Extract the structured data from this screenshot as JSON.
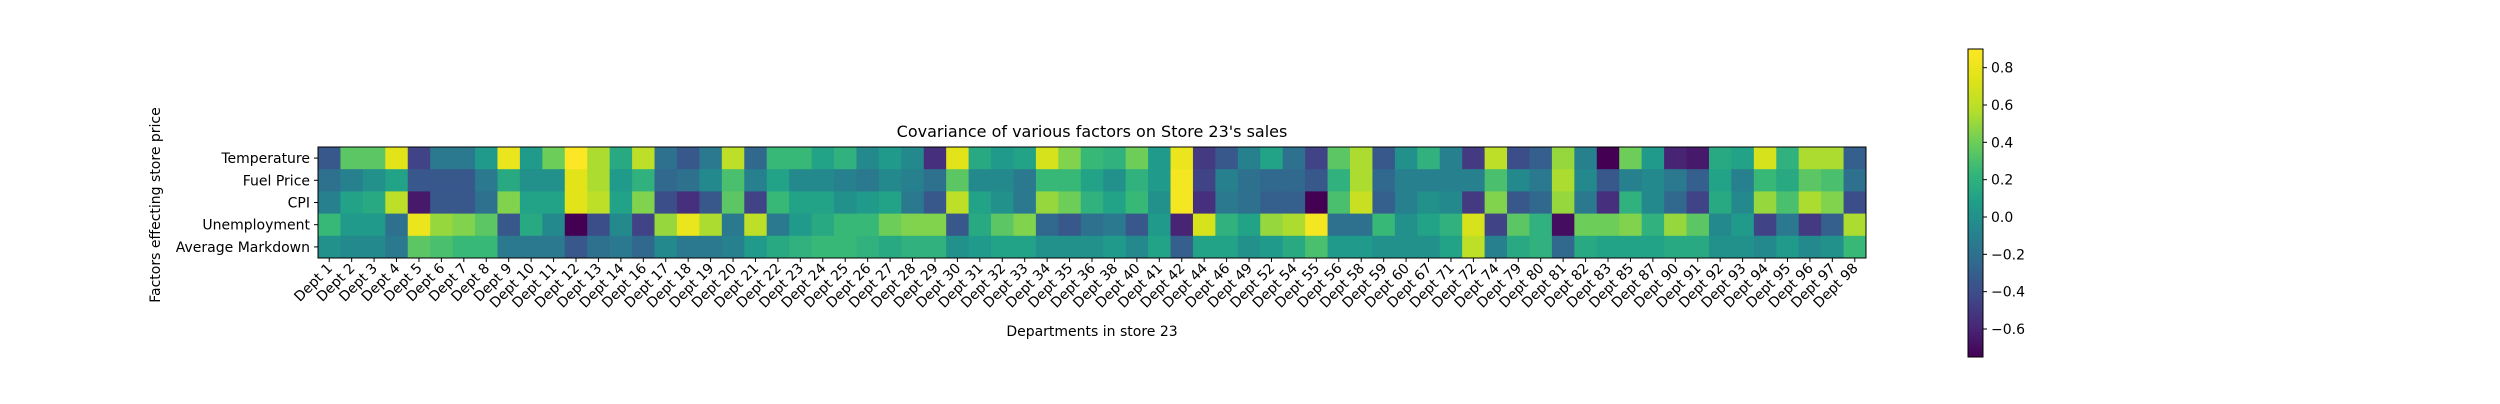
{
  "chart_data": {
    "type": "heatmap",
    "title": "Covariance of various factors on Store 23's sales",
    "xlabel": "Departments in store 23",
    "ylabel": "Factors effecting store price",
    "colormap": "viridis",
    "color_range": [
      -0.75,
      0.9
    ],
    "colorbar_ticks": [
      0.8,
      0.6,
      0.4,
      0.2,
      0.0,
      -0.2,
      -0.4,
      -0.6
    ],
    "colorbar_tick_labels": [
      "0.8",
      "0.6",
      "0.4",
      "0.2",
      "0.0",
      "−0.2",
      "−0.4",
      "−0.6"
    ],
    "rows": [
      "Temperature",
      "Fuel Price",
      "CPI",
      "Unemployment",
      "Average Markdown"
    ],
    "columns": [
      "Dept 1",
      "Dept 2",
      "Dept 3",
      "Dept 4",
      "Dept 5",
      "Dept 6",
      "Dept 7",
      "Dept 8",
      "Dept 9",
      "Dept 10",
      "Dept 11",
      "Dept 12",
      "Dept 13",
      "Dept 14",
      "Dept 16",
      "Dept 17",
      "Dept 18",
      "Dept 19",
      "Dept 20",
      "Dept 21",
      "Dept 22",
      "Dept 23",
      "Dept 24",
      "Dept 25",
      "Dept 26",
      "Dept 27",
      "Dept 28",
      "Dept 29",
      "Dept 30",
      "Dept 31",
      "Dept 32",
      "Dept 33",
      "Dept 34",
      "Dept 35",
      "Dept 36",
      "Dept 38",
      "Dept 40",
      "Dept 41",
      "Dept 42",
      "Dept 44",
      "Dept 46",
      "Dept 49",
      "Dept 52",
      "Dept 54",
      "Dept 55",
      "Dept 56",
      "Dept 58",
      "Dept 59",
      "Dept 60",
      "Dept 67",
      "Dept 71",
      "Dept 72",
      "Dept 74",
      "Dept 79",
      "Dept 80",
      "Dept 81",
      "Dept 82",
      "Dept 83",
      "Dept 85",
      "Dept 87",
      "Dept 90",
      "Dept 91",
      "Dept 92",
      "Dept 93",
      "Dept 94",
      "Dept 95",
      "Dept 96",
      "Dept 97",
      "Dept 98"
    ],
    "values": [
      [
        -0.35,
        0.35,
        0.35,
        0.75,
        -0.45,
        -0.15,
        -0.15,
        0.05,
        0.8,
        0.05,
        0.4,
        0.9,
        0.55,
        0.15,
        0.6,
        -0.2,
        -0.35,
        -0.15,
        0.6,
        -0.25,
        0.25,
        0.25,
        0.1,
        0.2,
        -0.05,
        0.05,
        -0.05,
        -0.55,
        0.75,
        0.15,
        0.05,
        0.1,
        0.7,
        0.45,
        0.25,
        0.2,
        0.4,
        0.05,
        0.8,
        -0.5,
        -0.35,
        -0.1,
        0.1,
        -0.2,
        -0.45,
        0.35,
        0.55,
        -0.35,
        0.0,
        0.2,
        -0.1,
        -0.5,
        0.6,
        -0.4,
        -0.3,
        0.5,
        -0.1,
        -0.75,
        0.4,
        0.05,
        -0.6,
        -0.65,
        0.15,
        0.1,
        0.7,
        0.2,
        0.55,
        0.55,
        -0.3
      ],
      [
        -0.2,
        -0.1,
        0.0,
        0.1,
        -0.35,
        -0.35,
        -0.35,
        -0.15,
        0.15,
        0.0,
        0.0,
        0.75,
        0.55,
        0.05,
        0.2,
        -0.25,
        -0.2,
        -0.05,
        0.3,
        -0.1,
        0.1,
        -0.05,
        -0.05,
        -0.1,
        -0.15,
        -0.05,
        -0.1,
        -0.2,
        0.35,
        -0.05,
        -0.05,
        -0.15,
        0.25,
        0.25,
        0.1,
        0.0,
        0.2,
        0.05,
        0.85,
        -0.45,
        -0.1,
        -0.2,
        -0.25,
        -0.25,
        -0.35,
        0.2,
        0.55,
        -0.25,
        -0.1,
        -0.1,
        -0.1,
        -0.1,
        0.3,
        -0.05,
        -0.15,
        0.55,
        -0.05,
        -0.35,
        -0.1,
        -0.05,
        -0.15,
        -0.3,
        0.1,
        -0.1,
        0.25,
        0.15,
        0.35,
        0.3,
        -0.2
      ],
      [
        -0.1,
        0.1,
        0.15,
        0.6,
        -0.65,
        -0.35,
        -0.35,
        -0.2,
        0.45,
        0.1,
        0.1,
        0.75,
        0.6,
        0.1,
        0.45,
        -0.4,
        -0.55,
        -0.35,
        0.35,
        -0.45,
        0.25,
        0.1,
        0.1,
        0.0,
        0.05,
        0.1,
        -0.15,
        -0.35,
        0.6,
        0.1,
        0.0,
        -0.15,
        0.5,
        0.4,
        0.2,
        0.1,
        0.25,
        0.0,
        0.85,
        -0.55,
        -0.15,
        -0.2,
        -0.3,
        -0.3,
        -0.75,
        0.3,
        0.65,
        -0.3,
        -0.1,
        0.0,
        -0.05,
        -0.5,
        0.45,
        -0.35,
        -0.25,
        0.5,
        -0.15,
        -0.55,
        0.2,
        -0.05,
        -0.25,
        -0.45,
        0.15,
        -0.05,
        0.5,
        0.3,
        0.55,
        0.45,
        -0.4
      ],
      [
        0.25,
        0.05,
        0.05,
        -0.2,
        0.8,
        0.5,
        0.45,
        0.35,
        -0.35,
        0.15,
        -0.05,
        -0.75,
        -0.4,
        -0.05,
        -0.45,
        0.5,
        0.8,
        0.55,
        -0.15,
        0.6,
        -0.15,
        0.05,
        0.15,
        0.25,
        0.25,
        0.4,
        0.45,
        0.45,
        -0.35,
        0.15,
        0.35,
        0.45,
        -0.25,
        -0.35,
        -0.2,
        -0.15,
        -0.35,
        0.05,
        -0.6,
        0.7,
        0.2,
        0.1,
        0.5,
        0.55,
        0.85,
        -0.2,
        -0.2,
        0.25,
        0.0,
        0.1,
        0.2,
        0.7,
        -0.45,
        0.35,
        0.2,
        -0.7,
        0.4,
        0.4,
        0.45,
        0.2,
        0.5,
        0.35,
        -0.05,
        0.05,
        -0.45,
        -0.15,
        -0.5,
        -0.3,
        0.55
      ],
      [
        0.0,
        -0.05,
        -0.05,
        -0.15,
        0.35,
        0.3,
        0.25,
        0.25,
        -0.15,
        -0.15,
        -0.15,
        -0.35,
        -0.2,
        -0.15,
        -0.25,
        -0.05,
        -0.15,
        -0.15,
        -0.1,
        0.05,
        0.15,
        0.2,
        0.25,
        0.25,
        0.2,
        0.15,
        0.2,
        0.2,
        0.0,
        0.05,
        0.1,
        0.1,
        0.0,
        0.0,
        0.0,
        0.05,
        -0.05,
        0.1,
        -0.3,
        0.1,
        0.1,
        0.0,
        0.05,
        0.15,
        0.3,
        0.05,
        0.05,
        0.0,
        0.0,
        0.0,
        0.1,
        0.6,
        -0.1,
        0.15,
        0.2,
        -0.25,
        0.15,
        0.1,
        0.1,
        0.1,
        0.15,
        0.15,
        0.0,
        0.0,
        -0.05,
        0.05,
        -0.05,
        0.0,
        0.25
      ]
    ]
  }
}
